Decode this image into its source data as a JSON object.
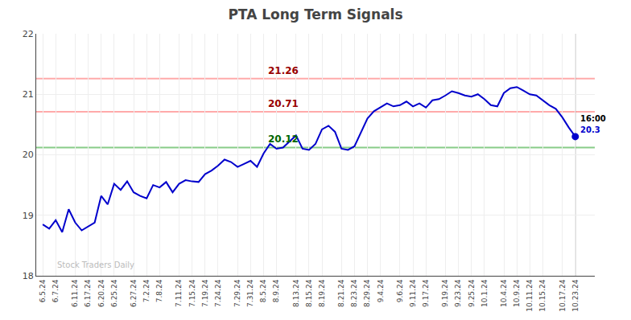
{
  "chart_data": {
    "type": "line",
    "title": "PTA Long Term Signals",
    "categories": [
      "6.5.24",
      null,
      "6.7.24",
      null,
      null,
      "6.11.24",
      null,
      "6.17.24",
      null,
      "6.20.24",
      null,
      "6.25.24",
      null,
      null,
      "6.27.24",
      null,
      "7.2.24",
      null,
      "7.8.24",
      null,
      null,
      "7.11.24",
      null,
      "7.15.24",
      null,
      "7.19.24",
      null,
      "7.24.24",
      null,
      null,
      "7.29.24",
      null,
      "7.31.24",
      null,
      "8.5.24",
      null,
      "8.9.24",
      null,
      null,
      "8.13.24",
      null,
      "8.15.24",
      null,
      "8.19.24",
      null,
      null,
      "8.21.24",
      null,
      "8.23.24",
      null,
      "8.29.24",
      null,
      "9.4.24",
      null,
      null,
      "9.6.24",
      null,
      "9.11.24",
      null,
      "9.17.24",
      null,
      null,
      "9.19.24",
      null,
      "9.23.24",
      null,
      "9.25.24",
      null,
      "10.1.24",
      null,
      null,
      "10.4.24",
      null,
      "10.9.24",
      null,
      "10.11.24",
      null,
      "10.15.24",
      null,
      null,
      "10.17.24",
      null,
      "10.23.24"
    ],
    "values": [
      18.85,
      18.78,
      18.92,
      18.72,
      19.1,
      18.88,
      18.75,
      18.82,
      18.88,
      19.32,
      19.18,
      19.52,
      19.42,
      19.56,
      19.38,
      19.32,
      19.28,
      19.5,
      19.46,
      19.55,
      19.38,
      19.52,
      19.58,
      19.56,
      19.55,
      19.68,
      19.74,
      19.82,
      19.92,
      19.88,
      19.8,
      19.85,
      19.9,
      19.8,
      20.02,
      20.18,
      20.1,
      20.12,
      20.22,
      20.32,
      20.1,
      20.08,
      20.18,
      20.42,
      20.48,
      20.38,
      20.1,
      20.08,
      20.14,
      20.38,
      20.6,
      20.72,
      20.78,
      20.85,
      20.8,
      20.82,
      20.88,
      20.8,
      20.85,
      20.78,
      20.9,
      20.92,
      20.98,
      21.05,
      21.02,
      20.98,
      20.96,
      21.0,
      20.92,
      20.82,
      20.8,
      21.02,
      21.1,
      21.12,
      21.06,
      21.0,
      20.98,
      20.9,
      20.82,
      20.76,
      20.62,
      20.45,
      20.3
    ],
    "color": "#0000cc",
    "ylim": [
      18,
      22
    ],
    "yticks": [
      18,
      19,
      20,
      21,
      22
    ],
    "grid": true,
    "hlines": [
      {
        "value": 21.26,
        "label": "21.26",
        "color": "#ffaaaa",
        "label_color": "#990000"
      },
      {
        "value": 20.71,
        "label": "20.71",
        "color": "#ffaaaa",
        "label_color": "#990000"
      },
      {
        "value": 20.12,
        "label": "20.12",
        "color": "#88cc88",
        "label_color": "#006600"
      }
    ],
    "end_marker": {
      "time_label": "16:00",
      "value_label": "20.3",
      "color": "#0000cc",
      "line_color": "#888888"
    },
    "watermark": {
      "text": "Stock Traders Daily",
      "color": "#bbbbbb"
    }
  }
}
